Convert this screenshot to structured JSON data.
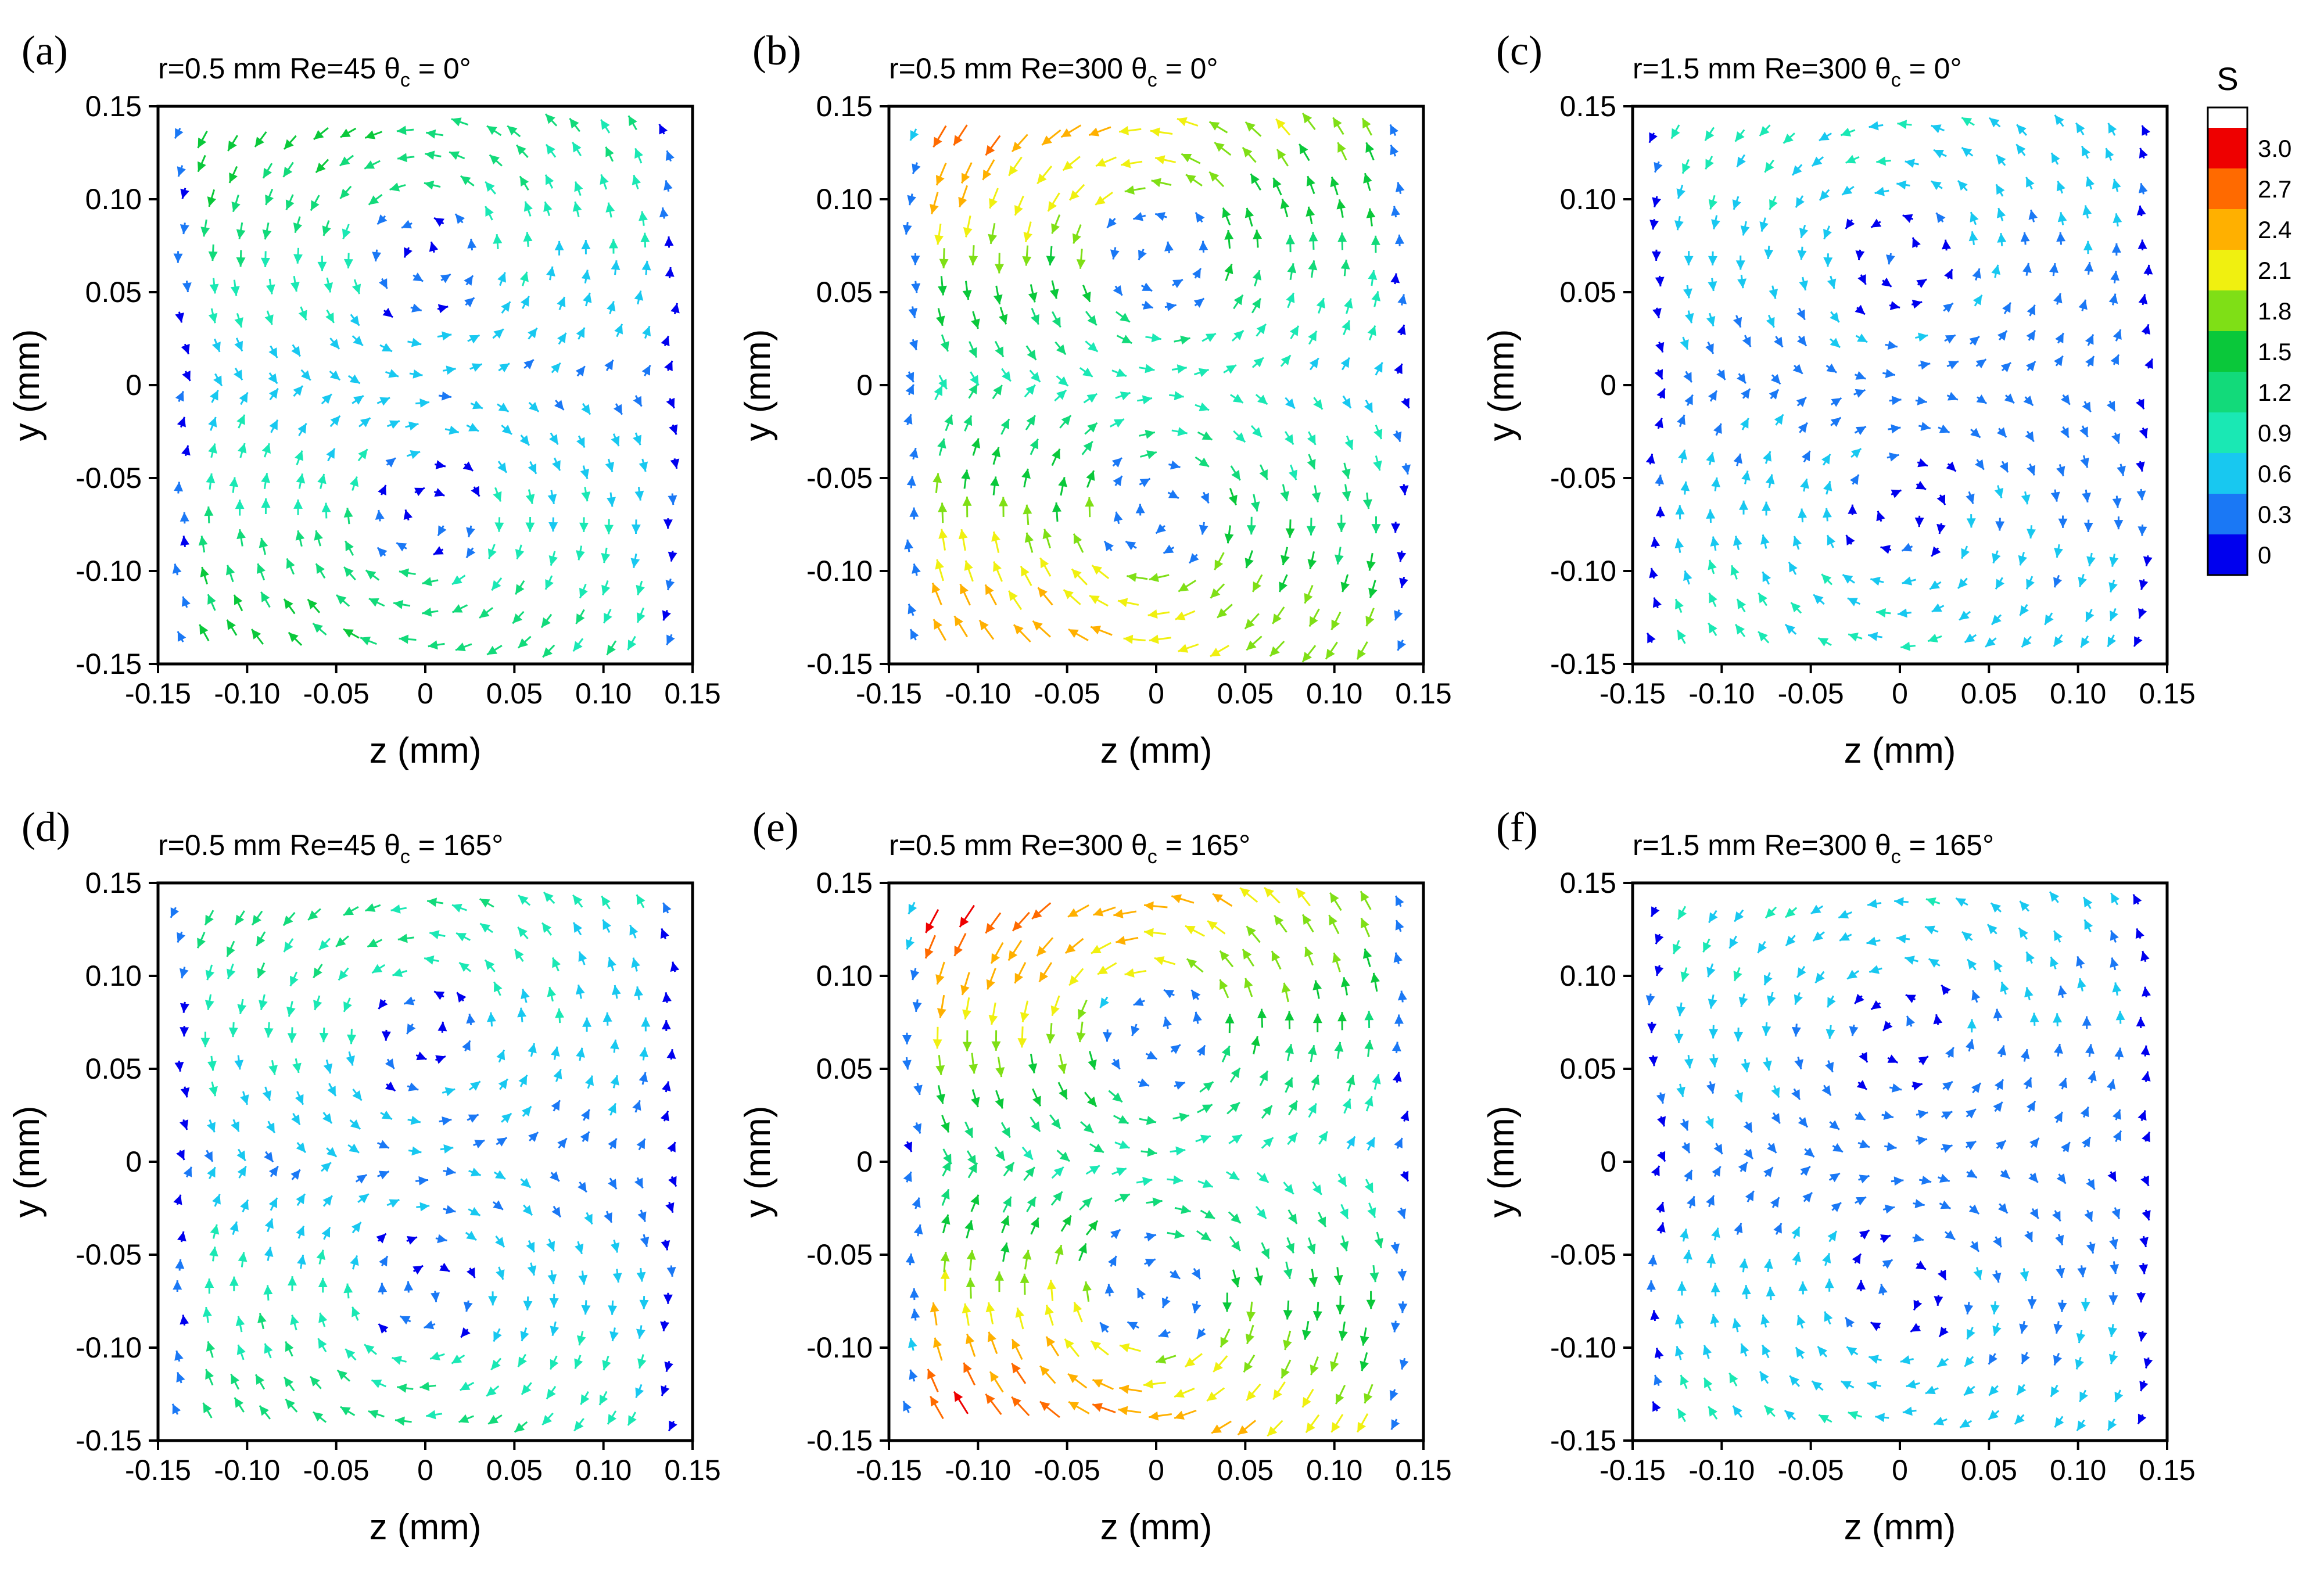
{
  "chart_data": {
    "type": "quiver",
    "description_units": "velocity vectors colored by S",
    "colorbar": {
      "title": "S",
      "ticks": [
        "3.0",
        "2.7",
        "2.4",
        "2.1",
        "1.8",
        "1.5",
        "1.2",
        "0.9",
        "0.6",
        "0.3",
        "0"
      ],
      "levels": [
        "#0000ee",
        "#1a78f5",
        "#18c8f0",
        "#1ae8b4",
        "#12da7a",
        "#0ac83a",
        "#7fdf16",
        "#f0f010",
        "#ffb000",
        "#ff6a00",
        "#ee0000"
      ],
      "range": [
        -0.15,
        3.3
      ]
    },
    "axes": {
      "xlabel": "z (mm)",
      "ylabel": "y (mm)",
      "xlim": [
        -0.15,
        0.15
      ],
      "ylim": [
        -0.15,
        0.15
      ],
      "xticks": [
        "-0.15",
        "-0.10",
        "-0.05",
        "0",
        "0.05",
        "0.10",
        "0.15"
      ],
      "yticks": [
        "-0.15",
        "-0.10",
        "-0.05",
        "0",
        "0.05",
        "0.10",
        "0.15"
      ]
    },
    "panels": [
      {
        "letter": "(a)",
        "title_prefix": "r=0.5 mm Re=45 θ",
        "title_sub": "c",
        "title_suffix": " = 0°",
        "max_s": 1.7
      },
      {
        "letter": "(b)",
        "title_prefix": "r=0.5 mm Re=300 θ",
        "title_sub": "c",
        "title_suffix": " = 0°",
        "max_s": 2.9
      },
      {
        "letter": "(c)",
        "title_prefix": "r=1.5 mm Re=300 θ",
        "title_sub": "c",
        "title_suffix": " = 0°",
        "max_s": 1.0
      },
      {
        "letter": "(d)",
        "title_prefix": "r=0.5 mm Re=45 θ",
        "title_sub": "c",
        "title_suffix": " = 165°",
        "max_s": 1.4
      },
      {
        "letter": "(e)",
        "title_prefix": "r=0.5 mm Re=300 θ",
        "title_sub": "c",
        "title_suffix": " = 165°",
        "max_s": 3.2
      },
      {
        "letter": "(f)",
        "title_prefix": "r=1.5 mm Re=300 θ",
        "title_sub": "c",
        "title_suffix": " = 165°",
        "max_s": 0.9
      }
    ]
  }
}
